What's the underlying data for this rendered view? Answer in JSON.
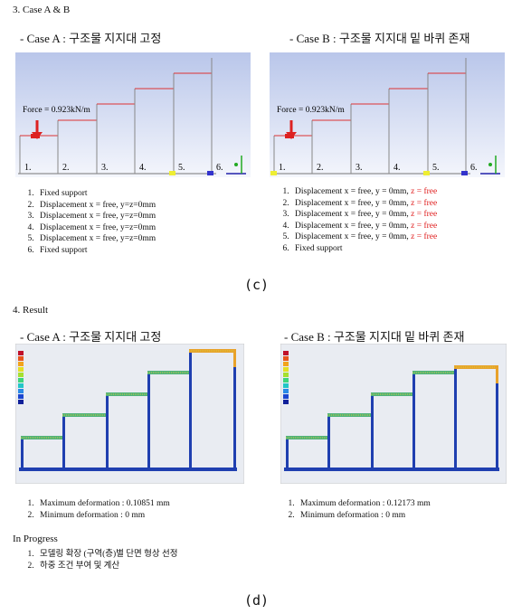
{
  "section3": {
    "title": "3. Case A & B"
  },
  "case_a": {
    "heading": "-  Case A : 구조물 지지대 고정",
    "force_label": "Force = 0.923kN/m",
    "node_labels": [
      "1.",
      "2.",
      "3.",
      "4.",
      "5.",
      "6."
    ],
    "conditions": [
      "Fixed support",
      "Displacement  x = free, y=z=0mm",
      "Displacement  x = free, y=z=0mm",
      "Displacement  x = free, y=z=0mm",
      "Displacement  x = free, y=z=0mm",
      "Fixed support"
    ]
  },
  "case_b": {
    "heading": "-  Case B : 구조물 지지대 밑 바퀴 존재",
    "force_label": "Force = 0.923kN/m",
    "node_labels": [
      "1.",
      "2.",
      "3.",
      "4.",
      "5.",
      "6."
    ],
    "conditions": [
      {
        "text": "Displacement  x = free, y = 0mm, ",
        "highlight": "z = free"
      },
      {
        "text": "Displacement  x = free, y = 0mm, ",
        "highlight": "z = free"
      },
      {
        "text": "Displacement  x = free, y = 0mm, ",
        "highlight": "z = free"
      },
      {
        "text": "Displacement  x = free, y = 0mm, ",
        "highlight": "z = free"
      },
      {
        "text": "Displacement  x = free, y = 0mm, ",
        "highlight": "z = free"
      },
      {
        "text": "Fixed support"
      }
    ]
  },
  "caption_c": "(c)",
  "section4": {
    "title": "4. Result"
  },
  "result_a": {
    "heading": "-  Case A : 구조물 지지대 고정",
    "items": [
      "Maximum deformation : 0.10851 mm",
      "Minimum deformation : 0 mm"
    ]
  },
  "result_b": {
    "heading": "-  Case B : 구조물 지지대 밑 바퀴 존재",
    "items": [
      "Maximum deformation : 0.12173 mm",
      "Minimum deformation : 0 mm"
    ]
  },
  "in_progress": {
    "title": "In Progress",
    "items": [
      "모델링 확장 (구역(층)별 단면 형상 선정",
      "하중 조건 부여 및 계산"
    ]
  },
  "caption_d": "(d)"
}
